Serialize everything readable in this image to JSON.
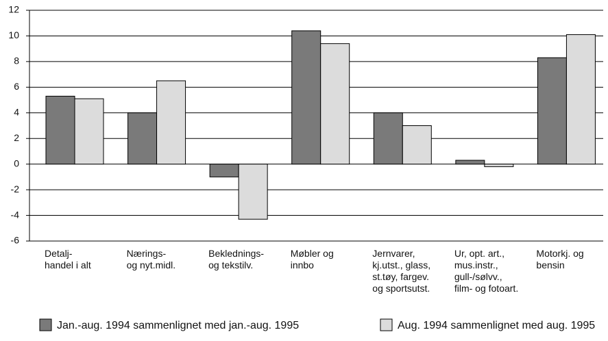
{
  "chart_data": {
    "type": "bar",
    "categories": [
      "Detalj-\nhandel i alt",
      "Nærings-\nog nyt.midl.",
      "Beklednings-\nog tekstilv.",
      "Møbler og\ninnbo",
      "Jernvarer,\nkj.utst., glass,\nst.tøy, fargev.\nog sportsutst.",
      "Ur, opt. art.,\nmus.instr.,\ngull-/sølvv.,\nfilm- og fotoart.",
      "Motorkj. og\nbensin"
    ],
    "series": [
      {
        "name": "Jan.-aug. 1994 sammenlignet med jan.-aug. 1995",
        "color": "#7a7a7a",
        "values": [
          5.3,
          4.0,
          -1.0,
          10.4,
          4.0,
          0.3,
          8.3
        ]
      },
      {
        "name": "Aug. 1994 sammenlignet med aug. 1995",
        "color": "#dcdcdc",
        "values": [
          5.1,
          6.5,
          -4.3,
          9.4,
          3.0,
          -0.2,
          10.1
        ]
      }
    ],
    "ylim": [
      -6,
      12
    ],
    "yticks": [
      -6,
      -4,
      -2,
      0,
      2,
      4,
      6,
      8,
      10,
      12
    ],
    "grid": true
  }
}
